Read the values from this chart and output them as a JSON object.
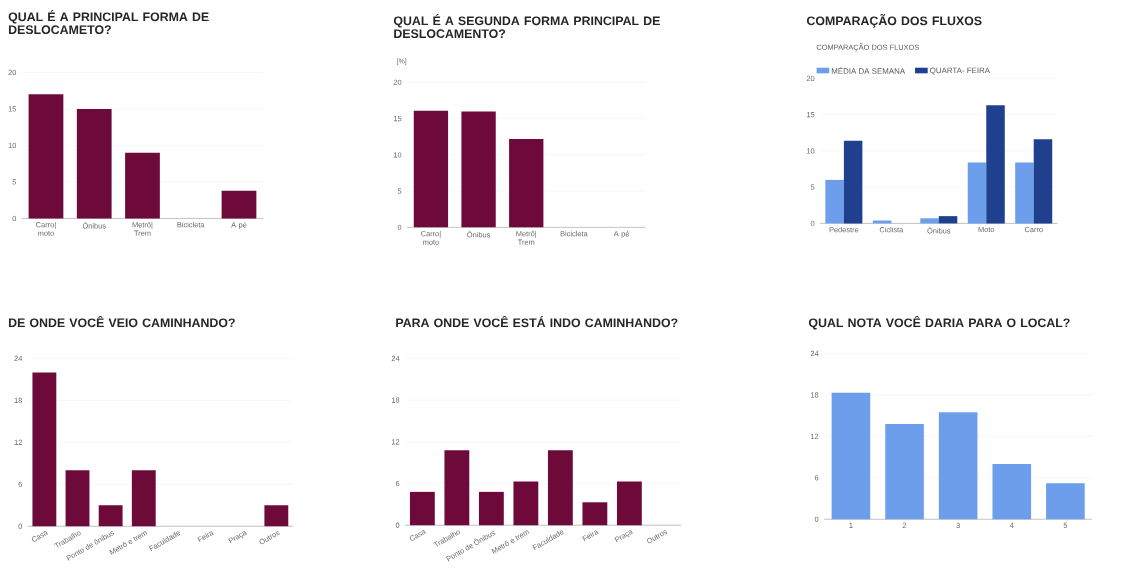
{
  "chart_data": [
    {
      "type": "bar",
      "title": "QUAL É A PRINCIPAL FORMA DE DESLOCAMETO?",
      "categories": [
        "Carro| moto",
        "Ônibus",
        "Metrô| Trem",
        "Bicicleta",
        "A pé"
      ],
      "values": [
        17,
        15,
        9,
        0,
        3.8
      ],
      "color": "#6d0a3a",
      "ylim": [
        0,
        20
      ],
      "yticks": [
        0,
        5,
        10,
        15,
        20
      ],
      "grid": "y"
    },
    {
      "type": "bar",
      "title": "QUAL É A SEGUNDA FORMA PRINCIPAL DE DESLOCAMENTO?",
      "ylabel": "[%]",
      "categories": [
        "Carro| moto",
        "Ônibus",
        "Metrô| Trem",
        "Bicicleta",
        "A pé"
      ],
      "values": [
        16.1,
        16.0,
        12.2,
        0,
        0
      ],
      "color": "#6d0a3a",
      "ylim": [
        0,
        20
      ],
      "yticks": [
        0,
        5,
        10,
        15,
        20
      ],
      "grid": "y"
    },
    {
      "type": "bar",
      "title": "COMPARAÇÃO DOS FLUXOS",
      "subtitle": "COMPARAÇÃO DOS FLUXOS",
      "categories": [
        "Pedestre",
        "Ciclista",
        "Ônibus",
        "Moto",
        "Carro"
      ],
      "series": [
        {
          "name": "MÉDIA DA SEMANA",
          "color": "#6d9eeb",
          "values": [
            6.0,
            0.4,
            0.7,
            8.4,
            8.4
          ]
        },
        {
          "name": "QUARTA- FEIRA",
          "color": "#1f3f8f",
          "values": [
            11.4,
            0,
            1.0,
            16.3,
            11.6
          ]
        }
      ],
      "ylim": [
        0,
        20
      ],
      "yticks": [
        0,
        5,
        10,
        15,
        20
      ],
      "grid": "y",
      "legend": "top left"
    },
    {
      "type": "bar",
      "title": "DE ONDE VOCÊ VEIO CAMINHANDO?",
      "categories": [
        "Casa",
        "Trabalho",
        "Ponto de ônibus",
        "Metrô e trem",
        "Faculdade",
        "Feira",
        "Praça",
        "Outros"
      ],
      "values": [
        22,
        8,
        3,
        8,
        0,
        0,
        0,
        3
      ],
      "color": "#6d0a3a",
      "ylim": [
        0,
        24
      ],
      "yticks": [
        0,
        6,
        12,
        18,
        24
      ],
      "grid": "y"
    },
    {
      "type": "bar",
      "title": "PARA ONDE VOCÊ ESTÁ INDO CAMINHANDO?",
      "categories": [
        "Casa",
        "Trabalho",
        "Ponto de Ônibus",
        "Metrô e trem",
        "Faculdade",
        "Feira",
        "Praça",
        "Outros"
      ],
      "values": [
        4.8,
        10.8,
        4.8,
        6.3,
        10.8,
        3.3,
        6.3,
        0
      ],
      "color": "#6d0a3a",
      "ylim": [
        0,
        24
      ],
      "yticks": [
        0,
        6,
        12,
        18,
        24
      ],
      "grid": "y"
    },
    {
      "type": "bar",
      "title": "QUAL NOTA VOCÊ DARIA PARA O LOCAL?",
      "categories": [
        "1",
        "2",
        "3",
        "4",
        "5"
      ],
      "values": [
        18.3,
        13.8,
        15.5,
        8.0,
        5.2
      ],
      "color": "#6d9eeb",
      "ylim": [
        0,
        24
      ],
      "yticks": [
        0,
        6,
        12,
        18,
        24
      ],
      "grid": "y"
    }
  ]
}
